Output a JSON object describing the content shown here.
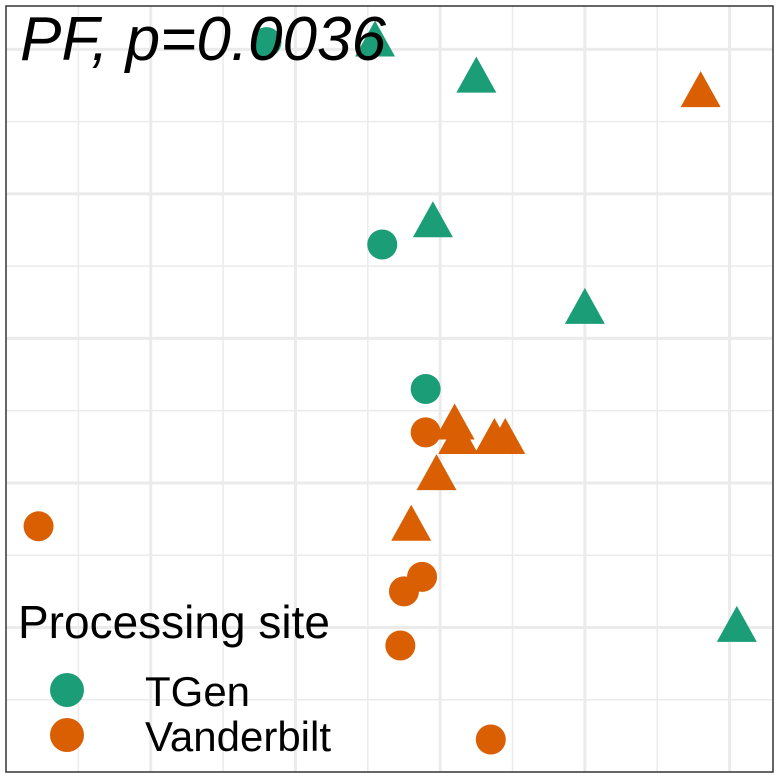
{
  "chart_data": {
    "type": "scatter",
    "title": "PF, p=0.0036",
    "xlabel": "",
    "ylabel": "",
    "xlim": [
      0,
      10.6
    ],
    "ylim": [
      0,
      10.6
    ],
    "grid": true,
    "legend": {
      "title": "Processing site",
      "placement": "bottom-left",
      "entries": [
        {
          "label": "TGen",
          "color": "#1B9E77"
        },
        {
          "label": "Vanderbilt",
          "color": "#D95F02"
        }
      ]
    },
    "series": [
      {
        "name": "TGen",
        "color": "#1B9E77",
        "points": [
          {
            "x": 3.6,
            "y": 10.1,
            "shape": "circle"
          },
          {
            "x": 5.1,
            "y": 10.1,
            "shape": "triangle"
          },
          {
            "x": 6.5,
            "y": 9.6,
            "shape": "triangle"
          },
          {
            "x": 5.9,
            "y": 7.6,
            "shape": "triangle"
          },
          {
            "x": 5.2,
            "y": 7.3,
            "shape": "circle"
          },
          {
            "x": 8.0,
            "y": 6.4,
            "shape": "triangle"
          },
          {
            "x": 5.8,
            "y": 5.3,
            "shape": "circle"
          },
          {
            "x": 10.1,
            "y": 2.0,
            "shape": "triangle"
          }
        ]
      },
      {
        "name": "Vanderbilt",
        "color": "#D95F02",
        "points": [
          {
            "x": 9.6,
            "y": 9.4,
            "shape": "triangle"
          },
          {
            "x": 6.2,
            "y": 4.8,
            "shape": "triangle"
          },
          {
            "x": 5.8,
            "y": 4.7,
            "shape": "circle"
          },
          {
            "x": 6.25,
            "y": 4.6,
            "shape": "triangle"
          },
          {
            "x": 6.75,
            "y": 4.6,
            "shape": "triangle"
          },
          {
            "x": 6.9,
            "y": 4.6,
            "shape": "triangle"
          },
          {
            "x": 5.95,
            "y": 4.1,
            "shape": "triangle"
          },
          {
            "x": 5.6,
            "y": 3.4,
            "shape": "triangle"
          },
          {
            "x": 0.45,
            "y": 3.4,
            "shape": "circle"
          },
          {
            "x": 5.75,
            "y": 2.7,
            "shape": "circle"
          },
          {
            "x": 5.5,
            "y": 2.5,
            "shape": "circle"
          },
          {
            "x": 5.45,
            "y": 1.75,
            "shape": "circle"
          },
          {
            "x": 6.7,
            "y": 0.45,
            "shape": "circle"
          }
        ]
      }
    ]
  }
}
